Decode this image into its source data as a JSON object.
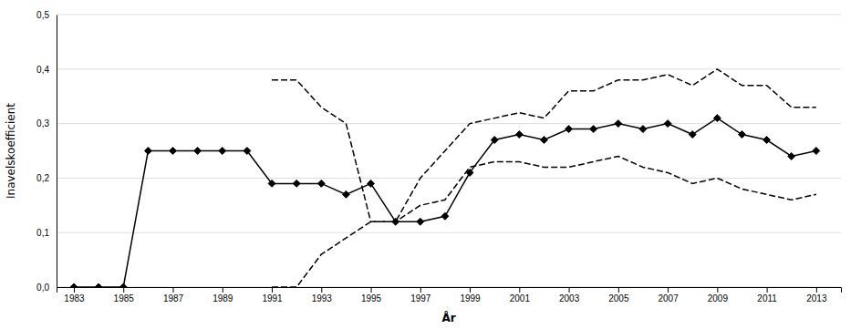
{
  "chart_data": {
    "type": "line",
    "xlabel": "År",
    "ylabel": "Inavelskoefficient",
    "x": [
      1983,
      1984,
      1985,
      1986,
      1987,
      1988,
      1989,
      1990,
      1991,
      1992,
      1993,
      1994,
      1995,
      1996,
      1997,
      1998,
      1999,
      2000,
      2001,
      2002,
      2003,
      2004,
      2005,
      2006,
      2007,
      2008,
      2009,
      2010,
      2011,
      2012,
      2013
    ],
    "series": [
      {
        "color": "#000000",
        "line_style": "dashed",
        "values": [
          null,
          null,
          null,
          null,
          null,
          null,
          null,
          null,
          0.38,
          0.38,
          0.33,
          0.3,
          0.12,
          0.12,
          0.2,
          0.25,
          0.3,
          0.31,
          0.32,
          0.31,
          0.36,
          0.36,
          0.38,
          0.38,
          0.39,
          0.37,
          0.4,
          0.37,
          0.37,
          0.33,
          0.33
        ]
      },
      {
        "color": "#000000",
        "line_style": "dashed",
        "values": [
          null,
          null,
          null,
          null,
          null,
          null,
          null,
          null,
          0.0,
          0.0,
          0.06,
          0.09,
          0.12,
          0.12,
          0.15,
          0.16,
          0.22,
          0.23,
          0.23,
          0.22,
          0.22,
          0.23,
          0.24,
          0.22,
          0.21,
          0.19,
          0.2,
          0.18,
          0.17,
          0.16,
          0.17
        ]
      },
      {
        "color": "#000000",
        "line_style": "solid",
        "marker": "diamond",
        "values": [
          0.0,
          0.0,
          0.0,
          0.25,
          0.25,
          0.25,
          0.25,
          0.25,
          0.19,
          0.19,
          0.19,
          0.17,
          0.19,
          0.12,
          0.12,
          0.13,
          0.21,
          0.27,
          0.28,
          0.27,
          0.29,
          0.29,
          0.3,
          0.29,
          0.3,
          0.28,
          0.31,
          0.28,
          0.27,
          0.24,
          0.25
        ]
      }
    ],
    "xlim": [
      1982.3,
      2014.0
    ],
    "xticks": [
      1983,
      1985,
      1987,
      1989,
      1991,
      1993,
      1995,
      1997,
      1999,
      2001,
      2003,
      2005,
      2007,
      2009,
      2011,
      2013
    ],
    "ylim": [
      0,
      0.5
    ],
    "yticks": [
      {
        "value": 0,
        "label": "0,0"
      },
      {
        "value": 0.1,
        "label": "0,1"
      },
      {
        "value": 0.2,
        "label": "0,2"
      },
      {
        "value": 0.3,
        "label": "0,3"
      },
      {
        "value": 0.4,
        "label": "0,4"
      },
      {
        "value": 0.5,
        "label": "0,5"
      }
    ],
    "grid": true
  }
}
